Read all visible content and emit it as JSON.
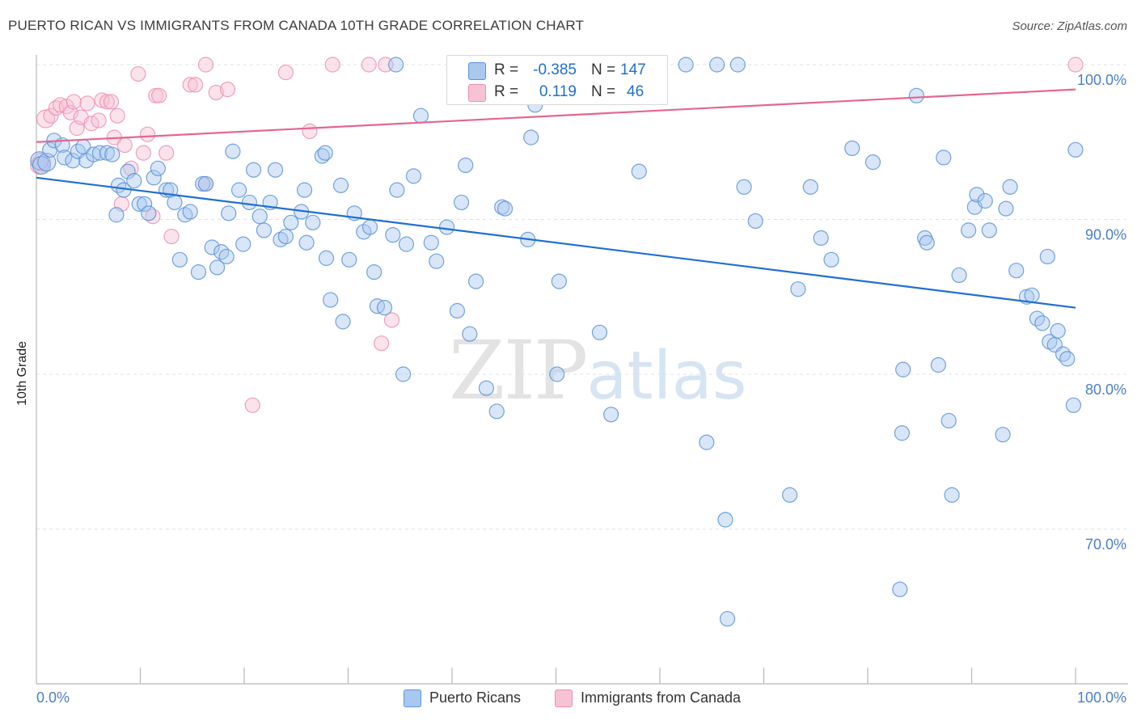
{
  "title": "PUERTO RICAN VS IMMIGRANTS FROM CANADA 10TH GRADE CORRELATION CHART",
  "source": "Source: ZipAtlas.com",
  "watermark": {
    "zip": "ZIP",
    "atlas": "atlas"
  },
  "colors": {
    "blue": "#5b93d8",
    "blue_fill": "#a9c8ef",
    "blue_line": "#1f6fd1",
    "pink": "#ee8fb0",
    "pink_fill": "#f6c2d4",
    "pink_line": "#e5668f",
    "grid": "#dde3ea",
    "tick_text": "#4a7fc9"
  },
  "legend": {
    "r_label": "R =",
    "n_label": "N =",
    "series": [
      {
        "r": "-0.385",
        "n": "147"
      },
      {
        "r": "0.119",
        "n": "46"
      }
    ]
  },
  "bottom_legend": [
    "Puerto Ricans",
    "Immigrants from Canada"
  ],
  "chart_data": {
    "type": "scatter",
    "title": "PUERTO RICAN VS IMMIGRANTS FROM CANADA 10TH GRADE CORRELATION CHART",
    "xlabel": "",
    "ylabel": "10th Grade",
    "xlim": [
      0,
      100
    ],
    "ylim": [
      60,
      101
    ],
    "x_tick_labels": [
      "0.0%",
      "100.0%"
    ],
    "y_ticks": [
      70,
      80,
      90,
      100
    ],
    "y_tick_labels": [
      "70.0%",
      "80.0%",
      "90.0%",
      "100.0%"
    ],
    "grid": true,
    "legend_position": "top-center",
    "series": [
      {
        "name": "Puerto Ricans",
        "r": -0.385,
        "n": 147,
        "trend": {
          "x": [
            0,
            100
          ],
          "y": [
            92.7,
            84.3
          ]
        },
        "points": [
          [
            0.3,
            93.8
          ],
          [
            0.5,
            93.5
          ],
          [
            1.0,
            93.7
          ],
          [
            1.3,
            94.5
          ],
          [
            1.7,
            95.1
          ],
          [
            2.5,
            94.8
          ],
          [
            2.7,
            94.0
          ],
          [
            3.5,
            93.8
          ],
          [
            4.0,
            94.4
          ],
          [
            4.5,
            94.7
          ],
          [
            4.8,
            93.8
          ],
          [
            5.5,
            94.2
          ],
          [
            6.1,
            94.3
          ],
          [
            6.8,
            94.3
          ],
          [
            7.3,
            94.2
          ],
          [
            7.7,
            90.3
          ],
          [
            7.9,
            92.2
          ],
          [
            8.4,
            91.9
          ],
          [
            8.8,
            93.1
          ],
          [
            9.4,
            92.5
          ],
          [
            9.9,
            91.0
          ],
          [
            10.4,
            91.0
          ],
          [
            10.8,
            90.4
          ],
          [
            11.3,
            92.7
          ],
          [
            11.7,
            93.3
          ],
          [
            12.5,
            91.9
          ],
          [
            12.9,
            91.9
          ],
          [
            13.3,
            91.1
          ],
          [
            13.8,
            87.4
          ],
          [
            14.3,
            90.3
          ],
          [
            14.8,
            90.5
          ],
          [
            15.6,
            86.6
          ],
          [
            16.0,
            92.3
          ],
          [
            16.3,
            92.3
          ],
          [
            16.9,
            88.2
          ],
          [
            17.4,
            86.9
          ],
          [
            17.8,
            87.9
          ],
          [
            18.3,
            87.6
          ],
          [
            18.5,
            90.4
          ],
          [
            18.9,
            94.4
          ],
          [
            19.5,
            91.9
          ],
          [
            19.9,
            88.4
          ],
          [
            20.5,
            91.1
          ],
          [
            20.9,
            93.2
          ],
          [
            21.5,
            90.2
          ],
          [
            21.9,
            89.3
          ],
          [
            22.5,
            91.1
          ],
          [
            23.0,
            93.2
          ],
          [
            23.5,
            88.7
          ],
          [
            24.0,
            88.9
          ],
          [
            24.5,
            89.8
          ],
          [
            25.5,
            90.5
          ],
          [
            25.8,
            91.9
          ],
          [
            26.0,
            88.5
          ],
          [
            26.6,
            89.8
          ],
          [
            27.5,
            94.1
          ],
          [
            27.8,
            94.3
          ],
          [
            27.9,
            87.5
          ],
          [
            28.3,
            84.8
          ],
          [
            29.3,
            92.2
          ],
          [
            29.5,
            83.4
          ],
          [
            30.1,
            87.4
          ],
          [
            30.6,
            90.4
          ],
          [
            31.5,
            89.2
          ],
          [
            32.1,
            89.5
          ],
          [
            32.5,
            86.6
          ],
          [
            32.8,
            84.4
          ],
          [
            33.5,
            84.3
          ],
          [
            34.3,
            89.0
          ],
          [
            34.6,
            100.0
          ],
          [
            34.7,
            91.9
          ],
          [
            35.3,
            80.0
          ],
          [
            35.6,
            88.4
          ],
          [
            36.3,
            92.8
          ],
          [
            37.0,
            96.7
          ],
          [
            38.0,
            88.5
          ],
          [
            38.5,
            87.3
          ],
          [
            39.5,
            89.5
          ],
          [
            40.5,
            84.1
          ],
          [
            40.9,
            91.1
          ],
          [
            41.3,
            93.5
          ],
          [
            41.7,
            82.6
          ],
          [
            42.3,
            86.0
          ],
          [
            43.3,
            79.1
          ],
          [
            44.3,
            77.6
          ],
          [
            44.8,
            90.8
          ],
          [
            45.1,
            90.7
          ],
          [
            45.8,
            100.0
          ],
          [
            46.5,
            99.1
          ],
          [
            47.3,
            88.7
          ],
          [
            47.6,
            95.3
          ],
          [
            48.0,
            97.4
          ],
          [
            49.3,
            100.0
          ],
          [
            50.1,
            80.0
          ],
          [
            50.3,
            86.0
          ],
          [
            53.3,
            100.0
          ],
          [
            54.2,
            82.7
          ],
          [
            55.3,
            77.4
          ],
          [
            57.0,
            100.0
          ],
          [
            58.0,
            93.1
          ],
          [
            62.5,
            100.0
          ],
          [
            64.5,
            75.6
          ],
          [
            65.5,
            100.0
          ],
          [
            66.3,
            70.6
          ],
          [
            66.5,
            64.2
          ],
          [
            67.5,
            100.0
          ],
          [
            68.1,
            92.1
          ],
          [
            69.2,
            89.9
          ],
          [
            72.5,
            72.2
          ],
          [
            73.3,
            85.5
          ],
          [
            74.5,
            92.1
          ],
          [
            75.5,
            88.8
          ],
          [
            76.5,
            87.4
          ],
          [
            78.5,
            94.6
          ],
          [
            80.5,
            93.7
          ],
          [
            83.1,
            66.1
          ],
          [
            83.3,
            76.2
          ],
          [
            83.4,
            80.3
          ],
          [
            84.7,
            98.0
          ],
          [
            85.5,
            88.8
          ],
          [
            85.7,
            88.5
          ],
          [
            86.8,
            80.6
          ],
          [
            87.3,
            94.0
          ],
          [
            87.8,
            77.0
          ],
          [
            88.1,
            72.2
          ],
          [
            88.8,
            86.4
          ],
          [
            89.7,
            89.3
          ],
          [
            90.3,
            90.8
          ],
          [
            90.5,
            91.6
          ],
          [
            91.3,
            91.2
          ],
          [
            91.7,
            89.3
          ],
          [
            93.0,
            76.1
          ],
          [
            93.3,
            90.7
          ],
          [
            93.7,
            92.1
          ],
          [
            94.3,
            86.7
          ],
          [
            95.3,
            85.0
          ],
          [
            95.8,
            85.1
          ],
          [
            96.3,
            83.6
          ],
          [
            96.8,
            83.3
          ],
          [
            97.3,
            87.6
          ],
          [
            97.5,
            82.1
          ],
          [
            98.0,
            81.9
          ],
          [
            98.3,
            82.8
          ],
          [
            98.8,
            81.3
          ],
          [
            99.2,
            81.0
          ],
          [
            99.8,
            78.0
          ],
          [
            100.0,
            94.5
          ]
        ]
      },
      {
        "name": "Immigrants from Canada",
        "r": 0.119,
        "n": 46,
        "trend": {
          "x": [
            0,
            100
          ],
          "y": [
            95.0,
            98.4
          ]
        },
        "points": [
          [
            0.3,
            93.5
          ],
          [
            0.5,
            93.7
          ],
          [
            0.9,
            96.5
          ],
          [
            1.4,
            96.7
          ],
          [
            1.9,
            97.2
          ],
          [
            2.3,
            97.4
          ],
          [
            2.9,
            97.3
          ],
          [
            3.3,
            96.9
          ],
          [
            3.6,
            97.6
          ],
          [
            3.9,
            95.9
          ],
          [
            4.3,
            96.6
          ],
          [
            4.9,
            97.5
          ],
          [
            5.3,
            96.2
          ],
          [
            6.0,
            96.4
          ],
          [
            6.3,
            97.7
          ],
          [
            6.8,
            97.6
          ],
          [
            7.2,
            97.6
          ],
          [
            7.5,
            95.3
          ],
          [
            7.8,
            96.7
          ],
          [
            8.2,
            91.0
          ],
          [
            8.5,
            94.8
          ],
          [
            9.1,
            93.3
          ],
          [
            9.8,
            99.4
          ],
          [
            10.3,
            94.3
          ],
          [
            10.7,
            95.5
          ],
          [
            11.2,
            90.2
          ],
          [
            11.5,
            98.0
          ],
          [
            11.8,
            98.0
          ],
          [
            12.5,
            94.3
          ],
          [
            13.0,
            88.9
          ],
          [
            14.8,
            98.7
          ],
          [
            15.3,
            98.7
          ],
          [
            16.3,
            100.0
          ],
          [
            16.3,
            92.3
          ],
          [
            17.3,
            98.2
          ],
          [
            18.4,
            98.4
          ],
          [
            20.8,
            78.0
          ],
          [
            24.0,
            99.5
          ],
          [
            26.3,
            95.7
          ],
          [
            28.5,
            100.0
          ],
          [
            32.0,
            100.0
          ],
          [
            33.2,
            82.0
          ],
          [
            33.6,
            100.0
          ],
          [
            34.2,
            83.5
          ],
          [
            40.5,
            100.0
          ],
          [
            100.0,
            100.0
          ]
        ]
      }
    ]
  }
}
